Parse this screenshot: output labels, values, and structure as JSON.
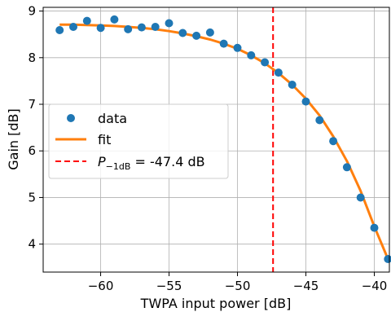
{
  "chart_data": {
    "type": "scatter",
    "title": "",
    "xlabel": "TWPA input power [dB]",
    "ylabel": "Gain [dB]",
    "xlim": [
      -64.2,
      -38.9
    ],
    "ylim": [
      3.4,
      9.08
    ],
    "xticks": [
      -60,
      -55,
      -50,
      -45,
      -40
    ],
    "xtick_labels": [
      "−60",
      "−55",
      "−50",
      "−45",
      "−40"
    ],
    "yticks": [
      4,
      5,
      6,
      7,
      8,
      9
    ],
    "ytick_labels": [
      "4",
      "5",
      "6",
      "7",
      "8",
      "9"
    ],
    "grid": true,
    "legend_position": "center-left",
    "series": [
      {
        "name": "data",
        "kind": "markers",
        "color": "#1f77b4",
        "x": [
          -63,
          -62,
          -61,
          -60,
          -59,
          -58,
          -57,
          -56,
          -55,
          -54,
          -53,
          -52,
          -51,
          -50,
          -49,
          -48,
          -47,
          -46,
          -45,
          -44,
          -43,
          -42,
          -41,
          -40,
          -39
        ],
        "y": [
          8.59,
          8.66,
          8.79,
          8.64,
          8.82,
          8.61,
          8.65,
          8.66,
          8.74,
          8.53,
          8.47,
          8.54,
          8.3,
          8.21,
          8.05,
          7.9,
          7.68,
          7.42,
          7.06,
          6.66,
          6.21,
          5.65,
          5.0,
          4.35,
          3.68
        ]
      },
      {
        "name": "fit",
        "kind": "line",
        "color": "#ff7f0e",
        "x": [
          -63,
          -62,
          -61,
          -60,
          -59,
          -58,
          -57,
          -56,
          -55,
          -54,
          -53,
          -52,
          -51,
          -50,
          -49,
          -48,
          -47,
          -46,
          -45,
          -44,
          -43,
          -42,
          -41,
          -40,
          -39
        ],
        "y": [
          8.71,
          8.71,
          8.7,
          8.69,
          8.68,
          8.66,
          8.64,
          8.61,
          8.57,
          8.52,
          8.46,
          8.39,
          8.3,
          8.19,
          8.05,
          7.88,
          7.67,
          7.42,
          7.12,
          6.76,
          6.31,
          5.78,
          5.14,
          4.38,
          3.68
        ]
      }
    ],
    "vlines": [
      {
        "x": -47.4,
        "color": "#ff0000",
        "style": "dashed",
        "label_prefix": "P",
        "label_subscript": "−1dB",
        "label_suffix": " = -47.4 dB"
      }
    ]
  }
}
